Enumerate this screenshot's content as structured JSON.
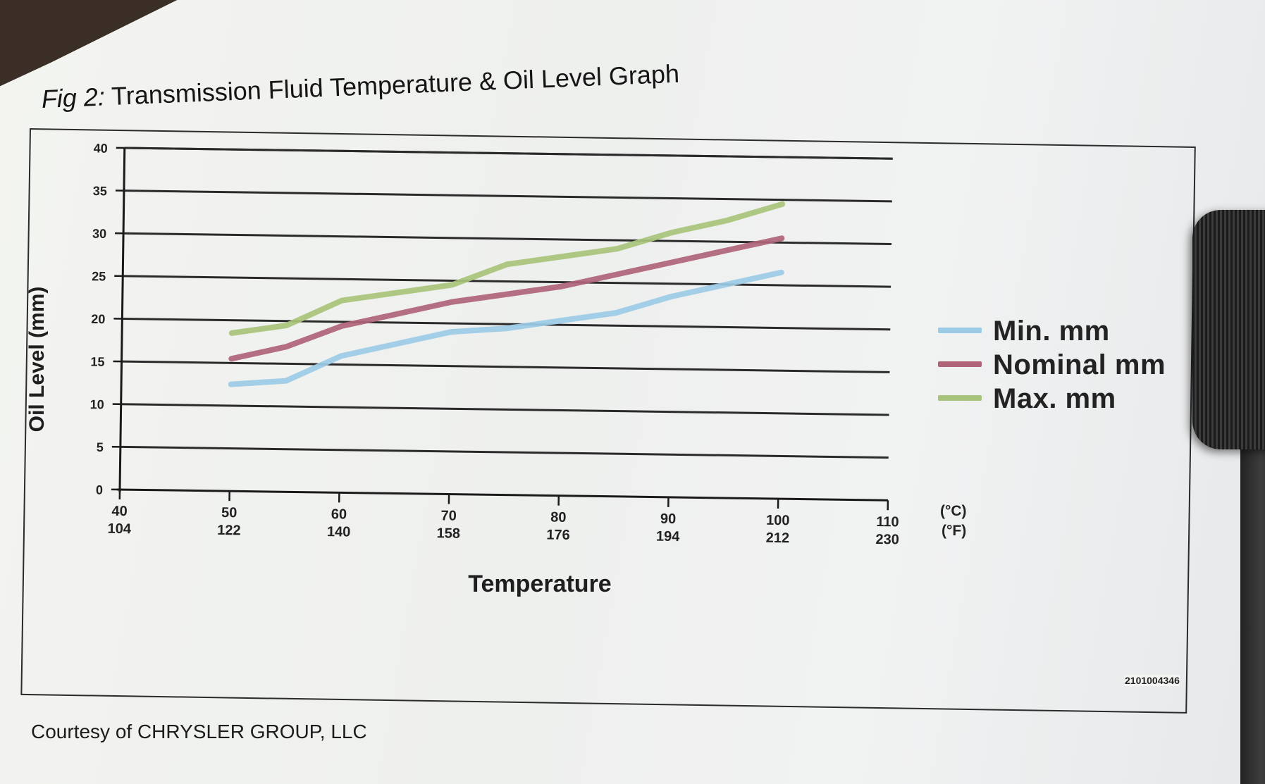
{
  "figure": {
    "title_prefix": "Fig 2:",
    "title_main": "Transmission Fluid Temperature & Oil Level Graph",
    "courtesy": "Courtesy of CHRYSLER GROUP, LLC",
    "id_code": "2101004346"
  },
  "legend": [
    {
      "label": "Min. mm",
      "color": "#9ccbe6"
    },
    {
      "label": "Nominal mm",
      "color": "#b06478"
    },
    {
      "label": "Max. mm",
      "color": "#a8c47a"
    }
  ],
  "units": {
    "celsius": "(°C)",
    "fahrenheit": "(°F)"
  },
  "chart_data": {
    "type": "line",
    "xlabel": "Temperature",
    "ylabel": "Oil Level (mm)",
    "x_ticks_c": [
      "40",
      "50",
      "60",
      "70",
      "80",
      "90",
      "100",
      "110"
    ],
    "x_ticks_f": [
      "104",
      "122",
      "140",
      "158",
      "176",
      "194",
      "212",
      "230"
    ],
    "y_ticks": [
      "0",
      "5",
      "10",
      "15",
      "20",
      "25",
      "30",
      "35",
      "40"
    ],
    "xlim": [
      40,
      110
    ],
    "ylim": [
      0,
      40
    ],
    "grid": true,
    "legend_position": "right",
    "series": [
      {
        "name": "Min. mm",
        "color": "#9ccbe6",
        "x": [
          50,
          55,
          60,
          65,
          70,
          75,
          80,
          85,
          90,
          95,
          100
        ],
        "y": [
          12.5,
          13,
          16,
          17.5,
          19,
          19.5,
          20.5,
          21.5,
          23.5,
          25,
          26.5
        ]
      },
      {
        "name": "Nominal mm",
        "color": "#b06478",
        "x": [
          50,
          55,
          60,
          65,
          70,
          75,
          80,
          85,
          90,
          95,
          100
        ],
        "y": [
          15.5,
          17,
          19.5,
          21,
          22.5,
          23.5,
          24.5,
          26,
          27.5,
          29,
          30.5
        ]
      },
      {
        "name": "Max. mm",
        "color": "#a8c47a",
        "x": [
          50,
          55,
          60,
          65,
          70,
          75,
          80,
          85,
          90,
          95,
          100
        ],
        "y": [
          18.5,
          19.5,
          22.5,
          23.5,
          24.5,
          27,
          28,
          29,
          31,
          32.5,
          34.5
        ]
      }
    ]
  }
}
